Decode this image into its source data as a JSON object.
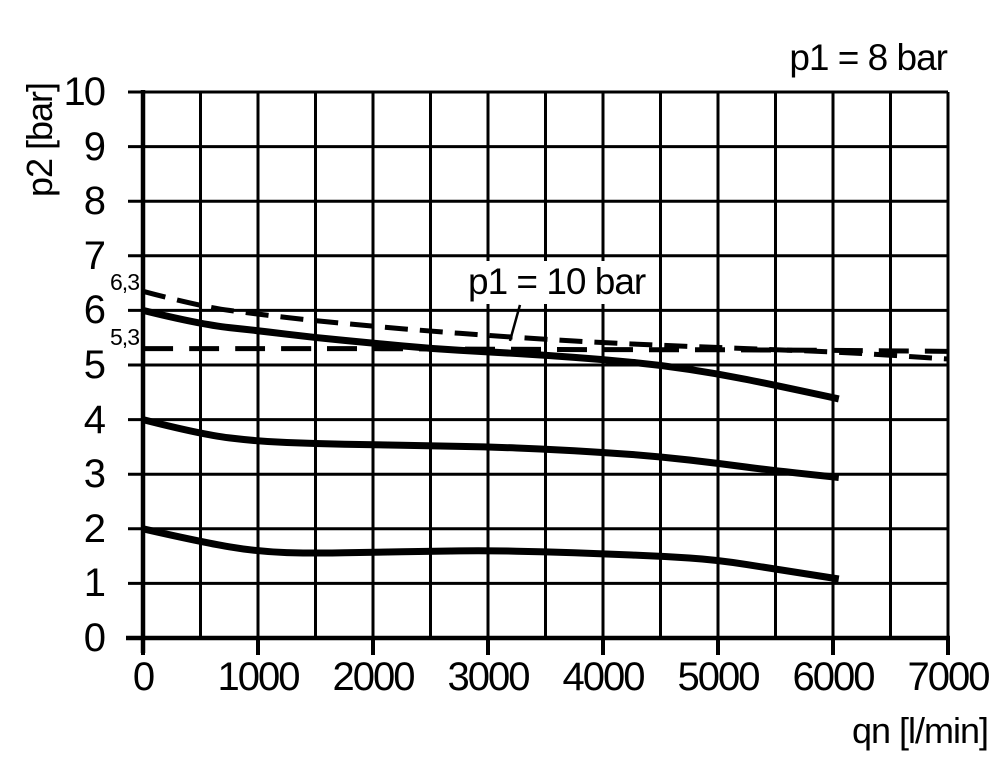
{
  "chart_data": {
    "type": "line",
    "title": "",
    "xlabel": "qn [l/min]",
    "ylabel": "p2 [bar]",
    "xlim": [
      0,
      7000
    ],
    "ylim": [
      0,
      10
    ],
    "x_tick_step": 1000,
    "y_tick_step": 1,
    "x_grid_step": 500,
    "y_grid_step": 1,
    "grid": "on",
    "legend": "none",
    "colors": {
      "ink": "#000000",
      "background": "#ffffff"
    },
    "x_ticks": [
      "0",
      "1000",
      "2000",
      "3000",
      "4000",
      "5000",
      "6000",
      "7000"
    ],
    "y_ticks": [
      "0",
      "1",
      "2",
      "3",
      "4",
      "5",
      "6",
      "7",
      "8",
      "9",
      "10"
    ],
    "extra_y_marks": [
      {
        "label": "6,3",
        "value": 6.3
      },
      {
        "label": "5,3",
        "value": 5.3
      }
    ],
    "annotations": {
      "top_right": "p1 = 8 bar",
      "curve_label": {
        "text": "p1 = 10 bar",
        "leader_from": [
          3278,
          6.1
        ],
        "leader_to": [
          3191,
          5.44
        ]
      }
    },
    "series": [
      {
        "id": "p1-10-bar-dashed",
        "name": "p1 = 10 bar",
        "style": "dashed",
        "dash": [
          23,
          12
        ],
        "width": 5,
        "points": [
          [
            0,
            6.35
          ],
          [
            500,
            6.07
          ],
          [
            1000,
            5.93
          ],
          [
            1500,
            5.81
          ],
          [
            2000,
            5.71
          ],
          [
            2500,
            5.62
          ],
          [
            3000,
            5.54
          ],
          [
            3500,
            5.47
          ],
          [
            4000,
            5.41
          ],
          [
            4500,
            5.36
          ],
          [
            5000,
            5.32
          ],
          [
            5500,
            5.28
          ],
          [
            6000,
            5.24
          ],
          [
            6500,
            5.18
          ],
          [
            7000,
            5.11
          ]
        ]
      },
      {
        "id": "p2-5-3-bar-reference-dashed",
        "name": "5,3 bar reference",
        "style": "dashed",
        "dash": [
          30,
          16
        ],
        "width": 5,
        "points": [
          [
            0,
            5.3
          ],
          [
            1000,
            5.3
          ],
          [
            2000,
            5.3
          ],
          [
            3000,
            5.29
          ],
          [
            4000,
            5.28
          ],
          [
            5000,
            5.28
          ],
          [
            6000,
            5.27
          ],
          [
            7000,
            5.25
          ]
        ]
      },
      {
        "id": "p2-setting-6-bar-solid",
        "name": "p2 setting 6 bar (p1 = 8 bar)",
        "style": "solid",
        "width": 7,
        "points": [
          [
            0,
            6.0
          ],
          [
            500,
            5.74
          ],
          [
            1000,
            5.63
          ],
          [
            1500,
            5.5
          ],
          [
            2000,
            5.4
          ],
          [
            2500,
            5.3
          ],
          [
            3000,
            5.24
          ],
          [
            3500,
            5.18
          ],
          [
            4000,
            5.1
          ],
          [
            4500,
            5.0
          ],
          [
            5000,
            4.84
          ],
          [
            5500,
            4.63
          ],
          [
            6050,
            4.38
          ]
        ]
      },
      {
        "id": "p2-setting-4-bar-solid",
        "name": "p2 setting 4 bar (p1 = 8 bar)",
        "style": "solid",
        "width": 7,
        "points": [
          [
            0,
            4.0
          ],
          [
            500,
            3.73
          ],
          [
            1000,
            3.6
          ],
          [
            1500,
            3.56
          ],
          [
            2000,
            3.54
          ],
          [
            2500,
            3.52
          ],
          [
            3000,
            3.5
          ],
          [
            3500,
            3.46
          ],
          [
            4000,
            3.4
          ],
          [
            4500,
            3.32
          ],
          [
            5000,
            3.2
          ],
          [
            5500,
            3.06
          ],
          [
            6050,
            2.94
          ]
        ]
      },
      {
        "id": "p2-setting-2-bar-solid",
        "name": "p2 setting 2 bar (p1 = 8 bar)",
        "style": "solid",
        "width": 7,
        "points": [
          [
            0,
            2.0
          ],
          [
            500,
            1.76
          ],
          [
            1000,
            1.58
          ],
          [
            1500,
            1.55
          ],
          [
            2000,
            1.57
          ],
          [
            2500,
            1.59
          ],
          [
            3000,
            1.6
          ],
          [
            3500,
            1.58
          ],
          [
            4000,
            1.54
          ],
          [
            4500,
            1.5
          ],
          [
            5000,
            1.43
          ],
          [
            5500,
            1.26
          ],
          [
            6050,
            1.08
          ]
        ]
      }
    ]
  }
}
